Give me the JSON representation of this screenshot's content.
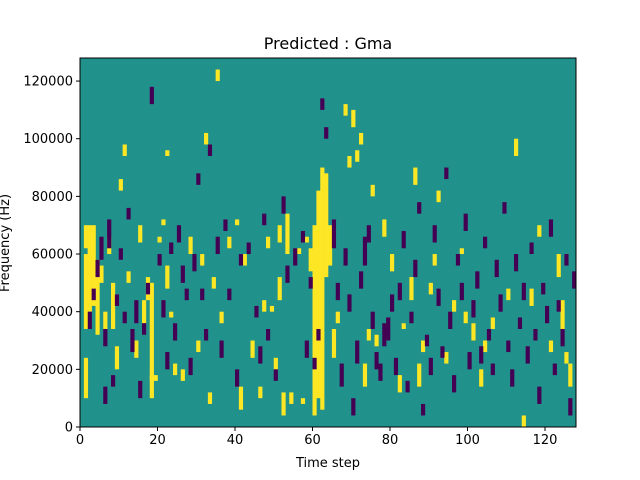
{
  "chart_data": {
    "type": "heatmap",
    "title": "Predicted : Gma",
    "xlabel": "Time step",
    "ylabel": "Frequency (Hz)",
    "xlim": [
      0,
      128
    ],
    "ylim": [
      0,
      128000
    ],
    "x_ticks": [
      0,
      20,
      40,
      60,
      80,
      100,
      120
    ],
    "x_tick_labels": [
      "0",
      "20",
      "40",
      "60",
      "80",
      "100",
      "120"
    ],
    "y_ticks": [
      0,
      20000,
      40000,
      60000,
      80000,
      100000,
      120000
    ],
    "y_tick_labels": [
      "0",
      "20000",
      "40000",
      "60000",
      "80000",
      "100000",
      "120000"
    ],
    "colors": {
      "low": "#440154",
      "mid": "#21918c",
      "high": "#fde725"
    },
    "background_level": "mid",
    "y_bin_size": 2000,
    "cells": {
      "high": [
        [
          1,
          62,
          70
        ],
        [
          1,
          34,
          60
        ],
        [
          1,
          10,
          24
        ],
        [
          2,
          40,
          70
        ],
        [
          2,
          60,
          66
        ],
        [
          3,
          42,
          70
        ],
        [
          4,
          32,
          58
        ],
        [
          5,
          50,
          56
        ],
        [
          6,
          34,
          40
        ],
        [
          7,
          60,
          66
        ],
        [
          8,
          34,
          50
        ],
        [
          9,
          20,
          28
        ],
        [
          10,
          82,
          86
        ],
        [
          11,
          94,
          98
        ],
        [
          12,
          50,
          54
        ],
        [
          14,
          24,
          30
        ],
        [
          15,
          64,
          70
        ],
        [
          16,
          36,
          44
        ],
        [
          17,
          44,
          52
        ],
        [
          18,
          10,
          50
        ],
        [
          18,
          16,
          18
        ],
        [
          19,
          16,
          18
        ],
        [
          20,
          64,
          66
        ],
        [
          21,
          70,
          72
        ],
        [
          22,
          48,
          56
        ],
        [
          22,
          94,
          96
        ],
        [
          23,
          38,
          40
        ],
        [
          24,
          18,
          22
        ],
        [
          26,
          16,
          20
        ],
        [
          28,
          60,
          66
        ],
        [
          30,
          26,
          30
        ],
        [
          31,
          56,
          60
        ],
        [
          32,
          98,
          102
        ],
        [
          33,
          8,
          12
        ],
        [
          34,
          48,
          52
        ],
        [
          35,
          120,
          124
        ],
        [
          36,
          36,
          40
        ],
        [
          38,
          62,
          66
        ],
        [
          40,
          70,
          72
        ],
        [
          41,
          6,
          14
        ],
        [
          42,
          56,
          60
        ],
        [
          44,
          24,
          30
        ],
        [
          46,
          10,
          14
        ],
        [
          47,
          40,
          44
        ],
        [
          48,
          62,
          66
        ],
        [
          49,
          40,
          42
        ],
        [
          50,
          20,
          24
        ],
        [
          51,
          44,
          52
        ],
        [
          51,
          64,
          70
        ],
        [
          52,
          4,
          12
        ],
        [
          53,
          60,
          74
        ],
        [
          54,
          8,
          12
        ],
        [
          56,
          60,
          62
        ],
        [
          57,
          8,
          10
        ],
        [
          58,
          64,
          66
        ],
        [
          59,
          54,
          62
        ],
        [
          60,
          4,
          70
        ],
        [
          61,
          10,
          82
        ],
        [
          62,
          6,
          90
        ],
        [
          63,
          52,
          88
        ],
        [
          64,
          56,
          70
        ],
        [
          65,
          24,
          34
        ],
        [
          66,
          36,
          40
        ],
        [
          68,
          108,
          112
        ],
        [
          69,
          90,
          94
        ],
        [
          70,
          104,
          110
        ],
        [
          71,
          92,
          96
        ],
        [
          72,
          98,
          102
        ],
        [
          73,
          14,
          22
        ],
        [
          74,
          30,
          34
        ],
        [
          75,
          80,
          84
        ],
        [
          76,
          28,
          32
        ],
        [
          78,
          66,
          72
        ],
        [
          80,
          54,
          60
        ],
        [
          82,
          12,
          18
        ],
        [
          83,
          34,
          36
        ],
        [
          85,
          44,
          52
        ],
        [
          86,
          84,
          90
        ],
        [
          87,
          14,
          22
        ],
        [
          88,
          26,
          30
        ],
        [
          90,
          46,
          50
        ],
        [
          91,
          56,
          60
        ],
        [
          92,
          78,
          82
        ],
        [
          94,
          22,
          26
        ],
        [
          96,
          40,
          44
        ],
        [
          98,
          60,
          62
        ],
        [
          99,
          36,
          40
        ],
        [
          101,
          30,
          36
        ],
        [
          103,
          14,
          20
        ],
        [
          104,
          26,
          30
        ],
        [
          106,
          34,
          38
        ],
        [
          110,
          44,
          48
        ],
        [
          112,
          94,
          100
        ],
        [
          114,
          0,
          4
        ],
        [
          116,
          42,
          48
        ],
        [
          118,
          66,
          70
        ],
        [
          121,
          26,
          30
        ],
        [
          123,
          52,
          60
        ],
        [
          124,
          34,
          44
        ],
        [
          125,
          22,
          26
        ],
        [
          126,
          14,
          22
        ]
      ],
      "low": [
        [
          2,
          34,
          40
        ],
        [
          3,
          44,
          48
        ],
        [
          4,
          52,
          58
        ],
        [
          5,
          58,
          66
        ],
        [
          6,
          28,
          34
        ],
        [
          6,
          8,
          14
        ],
        [
          7,
          62,
          72
        ],
        [
          8,
          14,
          18
        ],
        [
          9,
          42,
          46
        ],
        [
          10,
          58,
          62
        ],
        [
          11,
          36,
          40
        ],
        [
          12,
          72,
          76
        ],
        [
          13,
          26,
          34
        ],
        [
          14,
          36,
          44
        ],
        [
          15,
          10,
          16
        ],
        [
          16,
          32,
          36
        ],
        [
          17,
          46,
          50
        ],
        [
          18,
          112,
          118
        ],
        [
          20,
          56,
          60
        ],
        [
          21,
          38,
          44
        ],
        [
          22,
          20,
          26
        ],
        [
          23,
          60,
          64
        ],
        [
          24,
          30,
          36
        ],
        [
          25,
          64,
          70
        ],
        [
          26,
          50,
          56
        ],
        [
          27,
          44,
          48
        ],
        [
          28,
          18,
          24
        ],
        [
          29,
          54,
          60
        ],
        [
          30,
          84,
          88
        ],
        [
          31,
          44,
          48
        ],
        [
          32,
          30,
          34
        ],
        [
          33,
          94,
          98
        ],
        [
          35,
          60,
          66
        ],
        [
          36,
          24,
          30
        ],
        [
          37,
          68,
          72
        ],
        [
          38,
          44,
          48
        ],
        [
          40,
          14,
          20
        ],
        [
          41,
          56,
          60
        ],
        [
          43,
          60,
          64
        ],
        [
          45,
          38,
          42
        ],
        [
          46,
          22,
          28
        ],
        [
          47,
          70,
          74
        ],
        [
          48,
          30,
          34
        ],
        [
          50,
          16,
          20
        ],
        [
          52,
          74,
          80
        ],
        [
          53,
          50,
          56
        ],
        [
          55,
          56,
          62
        ],
        [
          57,
          64,
          68
        ],
        [
          58,
          24,
          30
        ],
        [
          59,
          48,
          52
        ],
        [
          60,
          20,
          24
        ],
        [
          61,
          30,
          34
        ],
        [
          62,
          110,
          114
        ],
        [
          63,
          100,
          104
        ],
        [
          65,
          62,
          72
        ],
        [
          66,
          44,
          50
        ],
        [
          67,
          14,
          22
        ],
        [
          68,
          56,
          62
        ],
        [
          69,
          40,
          46
        ],
        [
          70,
          4,
          10
        ],
        [
          71,
          22,
          30
        ],
        [
          72,
          48,
          54
        ],
        [
          73,
          56,
          66
        ],
        [
          74,
          64,
          70
        ],
        [
          75,
          34,
          40
        ],
        [
          76,
          20,
          26
        ],
        [
          77,
          16,
          22
        ],
        [
          78,
          28,
          36
        ],
        [
          79,
          30,
          38
        ],
        [
          80,
          40,
          46
        ],
        [
          81,
          18,
          24
        ],
        [
          82,
          44,
          50
        ],
        [
          83,
          62,
          68
        ],
        [
          84,
          12,
          16
        ],
        [
          85,
          36,
          40
        ],
        [
          86,
          52,
          58
        ],
        [
          87,
          74,
          78
        ],
        [
          88,
          4,
          8
        ],
        [
          89,
          28,
          32
        ],
        [
          90,
          18,
          24
        ],
        [
          91,
          64,
          70
        ],
        [
          92,
          42,
          48
        ],
        [
          93,
          24,
          28
        ],
        [
          94,
          86,
          90
        ],
        [
          95,
          34,
          40
        ],
        [
          96,
          12,
          18
        ],
        [
          97,
          56,
          60
        ],
        [
          98,
          44,
          50
        ],
        [
          99,
          68,
          74
        ],
        [
          100,
          20,
          26
        ],
        [
          101,
          38,
          44
        ],
        [
          102,
          48,
          54
        ],
        [
          103,
          22,
          28
        ],
        [
          104,
          62,
          66
        ],
        [
          105,
          30,
          34
        ],
        [
          106,
          18,
          22
        ],
        [
          107,
          52,
          58
        ],
        [
          108,
          40,
          46
        ],
        [
          109,
          74,
          78
        ],
        [
          110,
          26,
          30
        ],
        [
          111,
          14,
          20
        ],
        [
          112,
          54,
          60
        ],
        [
          113,
          34,
          38
        ],
        [
          114,
          44,
          50
        ],
        [
          115,
          22,
          28
        ],
        [
          116,
          60,
          64
        ],
        [
          117,
          30,
          34
        ],
        [
          118,
          8,
          14
        ],
        [
          119,
          46,
          50
        ],
        [
          120,
          36,
          42
        ],
        [
          121,
          66,
          72
        ],
        [
          122,
          18,
          22
        ],
        [
          123,
          40,
          44
        ],
        [
          124,
          28,
          34
        ],
        [
          125,
          56,
          60
        ],
        [
          126,
          4,
          10
        ],
        [
          127,
          48,
          54
        ]
      ]
    }
  }
}
